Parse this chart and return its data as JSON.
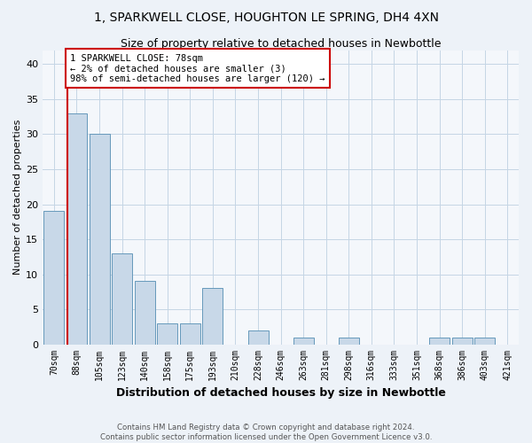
{
  "title": "1, SPARKWELL CLOSE, HOUGHTON LE SPRING, DH4 4XN",
  "subtitle": "Size of property relative to detached houses in Newbottle",
  "xlabel": "Distribution of detached houses by size in Newbottle",
  "ylabel": "Number of detached properties",
  "categories": [
    "70sqm",
    "88sqm",
    "105sqm",
    "123sqm",
    "140sqm",
    "158sqm",
    "175sqm",
    "193sqm",
    "210sqm",
    "228sqm",
    "246sqm",
    "263sqm",
    "281sqm",
    "298sqm",
    "316sqm",
    "333sqm",
    "351sqm",
    "368sqm",
    "386sqm",
    "403sqm",
    "421sqm"
  ],
  "values": [
    19,
    33,
    30,
    13,
    9,
    3,
    3,
    8,
    0,
    2,
    0,
    1,
    0,
    1,
    0,
    0,
    0,
    1,
    1,
    1,
    0
  ],
  "bar_color": "#c8d8e8",
  "bar_edge_color": "#6699bb",
  "annotation_line1": "1 SPARKWELL CLOSE: 78sqm",
  "annotation_line2": "← 2% of detached houses are smaller (3)",
  "annotation_line3": "98% of semi-detached houses are larger (120) →",
  "vline_x": 0.57,
  "ylim": [
    0,
    42
  ],
  "yticks": [
    0,
    5,
    10,
    15,
    20,
    25,
    30,
    35,
    40
  ],
  "footer1": "Contains HM Land Registry data © Crown copyright and database right 2024.",
  "footer2": "Contains public sector information licensed under the Open Government Licence v3.0.",
  "bg_color": "#edf2f8",
  "plot_bg_color": "#f4f7fb",
  "grid_color": "#c5d5e5",
  "title_fontsize": 10,
  "subtitle_fontsize": 9,
  "ylabel_fontsize": 8,
  "xlabel_fontsize": 9,
  "tick_fontsize": 7,
  "annot_fontsize": 7.5
}
